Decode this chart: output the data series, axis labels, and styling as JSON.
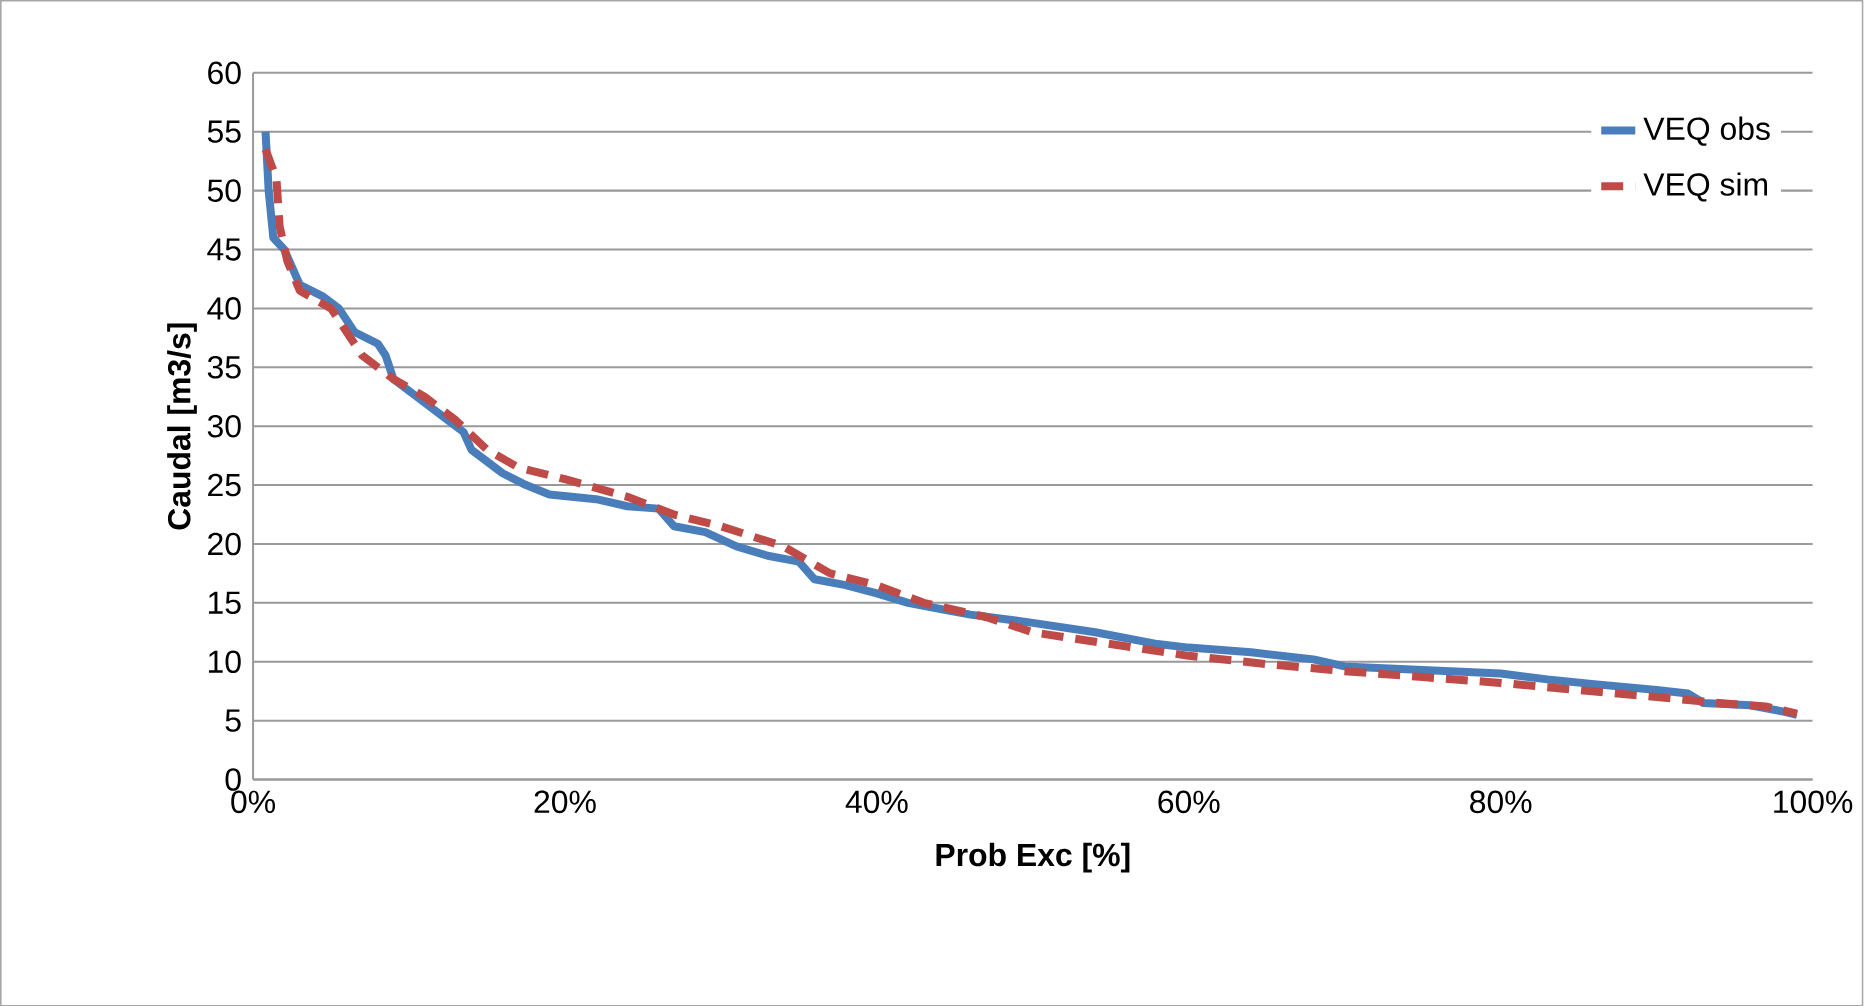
{
  "chart_data": {
    "type": "line",
    "xlabel": "Prob Exc [%]",
    "ylabel": "Caudal [m3/s]",
    "xlim": [
      0,
      100
    ],
    "ylim": [
      0,
      60
    ],
    "xticks": [
      {
        "value": 0,
        "label": "0%"
      },
      {
        "value": 20,
        "label": "20%"
      },
      {
        "value": 40,
        "label": "40%"
      },
      {
        "value": 60,
        "label": "60%"
      },
      {
        "value": 80,
        "label": "80%"
      },
      {
        "value": 100,
        "label": "100%"
      }
    ],
    "yticks": [
      0,
      5,
      10,
      15,
      20,
      25,
      30,
      35,
      40,
      45,
      50,
      55,
      60
    ],
    "grid": "y",
    "legend": "top right",
    "marker": "none",
    "series": [
      {
        "name": "VEQ obs",
        "color": "#4a7ebb",
        "line_style": "solid",
        "x": [
          0.8,
          1.0,
          1.3,
          2.0,
          3,
          4.5,
          5.5,
          6.5,
          8,
          8.5,
          9,
          10,
          11,
          12.5,
          13.5,
          14,
          15,
          16,
          17.5,
          19,
          22,
          24,
          26,
          27,
          29,
          31,
          33,
          35,
          36,
          38,
          40,
          42,
          44,
          46,
          50,
          54,
          58,
          60,
          64,
          68,
          70,
          75,
          80,
          83,
          86,
          90,
          92,
          93,
          96,
          98,
          99
        ],
        "values": [
          55,
          50,
          46,
          45,
          42,
          41,
          40,
          38,
          37,
          36,
          34,
          33,
          32,
          30.5,
          29.5,
          28,
          27,
          26,
          25,
          24.2,
          23.8,
          23.2,
          23,
          21.5,
          21,
          19.8,
          19,
          18.5,
          17,
          16.5,
          15.8,
          15,
          14.5,
          14,
          13.3,
          12.5,
          11.5,
          11.2,
          10.8,
          10.2,
          9.6,
          9.3,
          9,
          8.5,
          8.1,
          7.6,
          7.3,
          6.5,
          6.3,
          5.8,
          5.5
        ]
      },
      {
        "name": "VEQ sim",
        "color": "#be4b48",
        "line_style": "dashed",
        "x": [
          0.8,
          1.5,
          1.7,
          2.2,
          3,
          5,
          7,
          9,
          11,
          13,
          15,
          17,
          20,
          24,
          27,
          30,
          34,
          37,
          40,
          43,
          47,
          50,
          55,
          60,
          65,
          70,
          75,
          80,
          85,
          90,
          94,
          97,
          99
        ],
        "values": [
          53.5,
          51,
          47,
          44,
          41.5,
          40,
          36,
          34,
          32.5,
          30.5,
          28,
          26.5,
          25.5,
          24,
          22.5,
          21.5,
          19.8,
          17.5,
          16.5,
          15,
          13.8,
          12.5,
          11.5,
          10.5,
          9.8,
          9.2,
          8.7,
          8.2,
          7.6,
          7,
          6.5,
          6.2,
          5.6
        ]
      }
    ]
  }
}
